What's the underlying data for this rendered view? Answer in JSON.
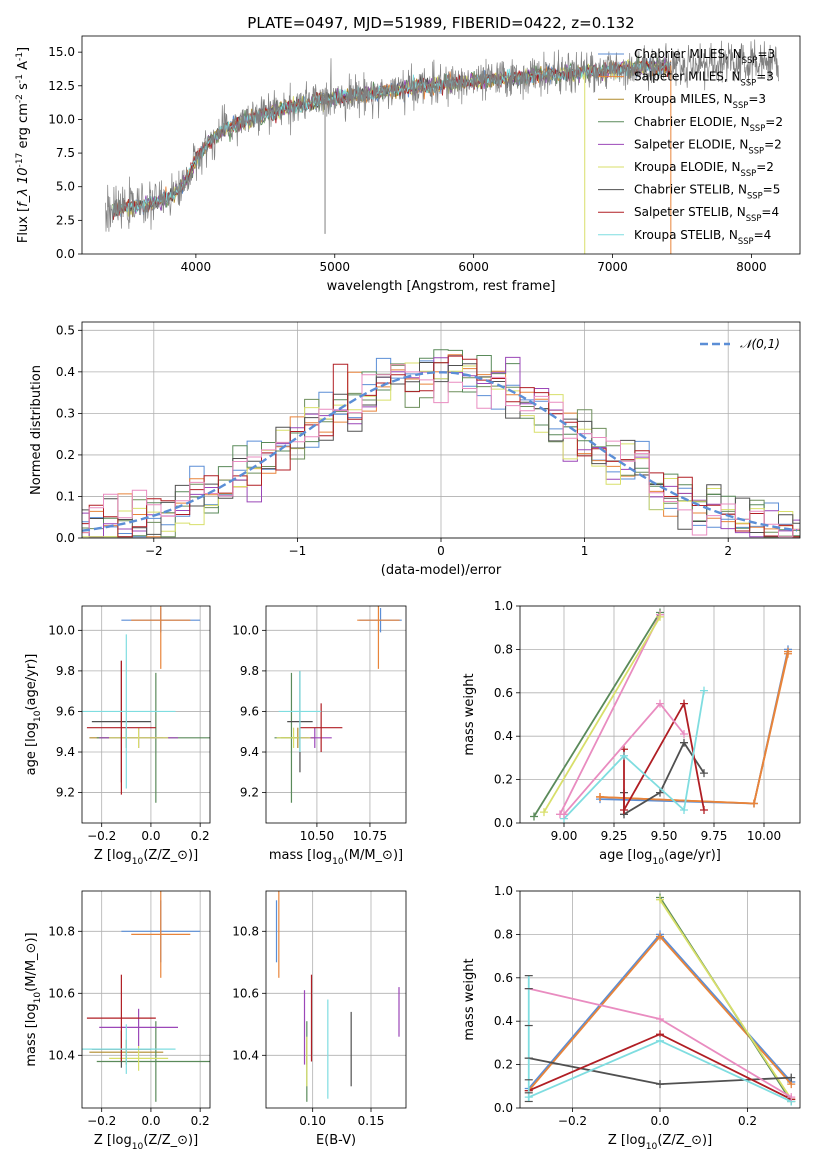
{
  "figure": {
    "title": "PLATE=0497, MJD=51989, FIBERID=0422, z=0.132",
    "models": [
      {
        "label": "Chabrier MILES, N$_{SSP}$=3",
        "imf": "Chabrier",
        "lib": "MILES",
        "nssp": "3",
        "color": "#5b8ed6"
      },
      {
        "label": "Salpeter MILES, N$_{SSP}$=3",
        "imf": "Salpeter",
        "lib": "MILES",
        "nssp": "3",
        "color": "#e8843a"
      },
      {
        "label": "Kroupa MILES, N$_{SSP}$=3",
        "imf": "Kroupa",
        "lib": "MILES",
        "nssp": "3",
        "color": "#b08a2a"
      },
      {
        "label": "Chabrier ELODIE, N$_{SSP}$=2",
        "imf": "Chabrier",
        "lib": "ELODIE",
        "nssp": "2",
        "color": "#5a8a5a"
      },
      {
        "label": "Salpeter ELODIE, N$_{SSP}$=2",
        "imf": "Salpeter",
        "lib": "ELODIE",
        "nssp": "2",
        "color": "#9b47b8"
      },
      {
        "label": "Kroupa ELODIE, N$_{SSP}$=2",
        "imf": "Kroupa",
        "lib": "ELODIE",
        "nssp": "2",
        "color": "#d8df6a"
      },
      {
        "label": "Chabrier STELIB, N$_{SSP}$=5",
        "imf": "Chabrier",
        "lib": "STELIB",
        "nssp": "5",
        "color": "#505050"
      },
      {
        "label": "Salpeter STELIB, N$_{SSP}$=4",
        "imf": "Salpeter",
        "lib": "STELIB",
        "nssp": "4",
        "color": "#b01e24"
      },
      {
        "label": "Kroupa STELIB, N$_{SSP}$=4",
        "imf": "Kroupa",
        "lib": "STELIB",
        "nssp": "4",
        "color": "#7fdde0"
      }
    ]
  },
  "chart_data": [
    {
      "id": "spectrum",
      "type": "line",
      "title": "PLATE=0497, MJD=51989, FIBERID=0422, z=0.132",
      "xlabel": "wavelength [Angstrom, rest frame]",
      "ylabel": "Flux [$f_\\lambda 10^{-17}$ erg cm$^{-2}$ s$^{-1}$ A$^{-1}$]",
      "xlim": [
        3180,
        8350
      ],
      "ylim": [
        0,
        16.2
      ],
      "xticks": [
        4000,
        5000,
        6000,
        7000,
        8000
      ],
      "yticks": [
        0.0,
        2.5,
        5.0,
        7.5,
        10.0,
        12.5,
        15.0
      ],
      "legend_loc": "upper right",
      "grid": false,
      "continuum": {
        "x": [
          3350,
          3500,
          3600,
          3700,
          3800,
          3900,
          3950,
          4000,
          4100,
          4200,
          4300,
          4500,
          4700,
          5000,
          5300,
          5600,
          5900,
          6200,
          6500,
          6800,
          7000,
          7200,
          7400,
          7600,
          7800,
          8000,
          8200
        ],
        "y": [
          3.0,
          3.5,
          3.6,
          3.8,
          4.2,
          5.0,
          5.8,
          7.0,
          8.4,
          9.2,
          9.7,
          10.4,
          11.0,
          11.6,
          12.0,
          12.4,
          12.7,
          13.0,
          13.3,
          13.5,
          13.7,
          13.9,
          14.0,
          14.1,
          14.2,
          14.3,
          14.4
        ]
      },
      "observed_range": [
        3350,
        8200
      ],
      "models_range": [
        3400,
        7420
      ],
      "features": [
        {
          "x": 4930,
          "y": 1.5,
          "note": "deep spike"
        },
        {
          "x": 6800,
          "y": 0.0,
          "note": "gap"
        },
        {
          "x": 7420,
          "y": 0.0,
          "note": "gap"
        }
      ]
    },
    {
      "id": "residuals",
      "type": "line",
      "xlabel": "(data-model)/error",
      "ylabel": "Normed distribution",
      "xlim": [
        -2.5,
        2.5
      ],
      "ylim": [
        0,
        0.52
      ],
      "xticks": [
        -2,
        -1,
        0,
        1,
        2
      ],
      "yticks": [
        0.0,
        0.1,
        0.2,
        0.3,
        0.4,
        0.5
      ],
      "grid": true,
      "legend_loc": "upper right",
      "gaussian": {
        "name": "$\\mathcal{N}(0,1)$",
        "mu": 0,
        "sigma": 1,
        "color": "#5b8ed6"
      },
      "bin_width": 0.1,
      "bin_start": -2.55
    },
    {
      "id": "age_vs_Z",
      "type": "scatter",
      "xlabel": "Z [log$_{10}$(Z/Z$_\\odot$)]",
      "ylabel": "age  [log$_{10}$(age/yr)]",
      "xlim": [
        -0.28,
        0.24
      ],
      "ylim": [
        9.05,
        10.12
      ],
      "xticks": [
        -0.2,
        0.0,
        0.2
      ],
      "yticks": [
        9.2,
        9.4,
        9.6,
        9.8,
        10.0
      ],
      "grid": true,
      "points": [
        {
          "x": 0.04,
          "y": 10.05,
          "xerr": 0.16,
          "yerr": 0.06,
          "model": 0
        },
        {
          "x": 0.04,
          "y": 10.05,
          "xerr": 0.12,
          "yerr": 0.24,
          "model": 1
        },
        {
          "x": -0.1,
          "y": 9.47,
          "xerr": 0.15,
          "yerr": 0.05,
          "model": 2
        },
        {
          "x": 0.02,
          "y": 9.47,
          "xerr": 0.24,
          "yerr": 0.32,
          "model": 3
        },
        {
          "x": -0.05,
          "y": 9.47,
          "xerr": 0.16,
          "yerr": 0.05,
          "model": 4
        },
        {
          "x": -0.05,
          "y": 9.47,
          "xerr": 0.12,
          "yerr": 0.05,
          "model": 5
        },
        {
          "x": -0.12,
          "y": 9.55,
          "xerr": 0.12,
          "yerr": 0.3,
          "model": 6
        },
        {
          "x": -0.12,
          "y": 9.52,
          "xerr": 0.14,
          "yerr": 0.33,
          "model": 7
        },
        {
          "x": -0.1,
          "y": 9.6,
          "xerr": 0.2,
          "yerr": 0.38,
          "model": 8
        }
      ]
    },
    {
      "id": "age_vs_mass",
      "type": "scatter",
      "xlabel": "mass [log$_{10}$(M/M$_\\odot$)]",
      "ylabel": "",
      "xlim": [
        10.26,
        10.92
      ],
      "ylim": [
        9.05,
        10.12
      ],
      "xticks": [
        10.25,
        10.5,
        10.75
      ],
      "yticks": [
        9.2,
        9.4,
        9.6,
        9.8,
        10.0
      ],
      "grid": true,
      "points": [
        {
          "x": 10.8,
          "y": 10.05,
          "xerr": 0.1,
          "yerr": 0.06,
          "model": 0
        },
        {
          "x": 10.79,
          "y": 10.05,
          "xerr": 0.1,
          "yerr": 0.24,
          "model": 1
        },
        {
          "x": 10.41,
          "y": 9.47,
          "xerr": 0.08,
          "yerr": 0.05,
          "model": 2
        },
        {
          "x": 10.38,
          "y": 9.47,
          "xerr": 0.08,
          "yerr": 0.32,
          "model": 3
        },
        {
          "x": 10.49,
          "y": 9.47,
          "xerr": 0.08,
          "yerr": 0.05,
          "model": 4
        },
        {
          "x": 10.39,
          "y": 9.47,
          "xerr": 0.08,
          "yerr": 0.05,
          "model": 5
        },
        {
          "x": 10.42,
          "y": 9.55,
          "xerr": 0.06,
          "yerr": 0.25,
          "model": 6
        },
        {
          "x": 10.52,
          "y": 9.52,
          "xerr": 0.1,
          "yerr": 0.12,
          "model": 7
        },
        {
          "x": 10.42,
          "y": 9.6,
          "xerr": 0.1,
          "yerr": 0.2,
          "model": 8
        }
      ]
    },
    {
      "id": "massweight_vs_age",
      "type": "line",
      "xlabel": "age  [log$_{10}$(age/yr)]",
      "ylabel": "mass weight",
      "xlim": [
        8.78,
        10.18
      ],
      "ylim": [
        0,
        1.0
      ],
      "xticks": [
        9.0,
        9.25,
        9.5,
        9.75,
        10.0
      ],
      "yticks": [
        0.0,
        0.2,
        0.4,
        0.6,
        0.8,
        1.0
      ],
      "grid": true,
      "series": [
        {
          "model": 0,
          "x": [
            9.18,
            9.95,
            10.12
          ],
          "y": [
            0.11,
            0.09,
            0.8
          ]
        },
        {
          "model": 1,
          "x": [
            9.18,
            9.95,
            10.12
          ],
          "y": [
            0.12,
            0.09,
            0.78
          ]
        },
        {
          "model": 2,
          "x": [
            9.18,
            9.95,
            10.12
          ],
          "y": [
            0.12,
            0.09,
            0.79
          ]
        },
        {
          "model": 3,
          "x": [
            8.85,
            9.48
          ],
          "y": [
            0.03,
            0.97
          ]
        },
        {
          "model": 4,
          "x": [
            8.98,
            9.48
          ],
          "y": [
            0.04,
            0.96
          ]
        },
        {
          "model": 5,
          "x": [
            8.9,
            9.48
          ],
          "y": [
            0.05,
            0.95
          ]
        },
        {
          "model": 6,
          "x": [
            9.3,
            9.3,
            9.48,
            9.6,
            9.7
          ],
          "y": [
            0.14,
            0.04,
            0.14,
            0.37,
            0.23
          ]
        },
        {
          "model": 7,
          "x": [
            9.3,
            9.3,
            9.6,
            9.7
          ],
          "y": [
            0.34,
            0.06,
            0.55,
            0.06
          ]
        },
        {
          "model": 8,
          "x": [
            9.0,
            9.3,
            9.6,
            9.7
          ],
          "y": [
            0.02,
            0.31,
            0.06,
            0.61
          ]
        },
        {
          "model": 4,
          "x": [
            9.0,
            9.48,
            9.6
          ],
          "y": [
            0.04,
            0.55,
            0.41
          ]
        }
      ]
    },
    {
      "id": "mass_vs_Z",
      "type": "scatter",
      "xlabel": "Z [log$_{10}$(Z/Z$_\\odot$)]",
      "ylabel": "mass [log$_{10}$(M/M$_\\odot$)]",
      "xlim": [
        -0.28,
        0.24
      ],
      "ylim": [
        10.23,
        10.93
      ],
      "xticks": [
        -0.2,
        0.0,
        0.2
      ],
      "yticks": [
        10.4,
        10.6,
        10.8
      ],
      "grid": true,
      "points": [
        {
          "x": 0.04,
          "y": 10.8,
          "xerr": 0.16,
          "yerr": 0.1,
          "model": 0
        },
        {
          "x": 0.04,
          "y": 10.79,
          "xerr": 0.12,
          "yerr": 0.14,
          "model": 1
        },
        {
          "x": -0.1,
          "y": 10.41,
          "xerr": 0.15,
          "yerr": 0.04,
          "model": 2
        },
        {
          "x": 0.02,
          "y": 10.38,
          "xerr": 0.24,
          "yerr": 0.13,
          "model": 3
        },
        {
          "x": -0.05,
          "y": 10.49,
          "xerr": 0.16,
          "yerr": 0.06,
          "model": 4
        },
        {
          "x": -0.05,
          "y": 10.39,
          "xerr": 0.12,
          "yerr": 0.04,
          "model": 5
        },
        {
          "x": -0.12,
          "y": 10.42,
          "xerr": 0.12,
          "yerr": 0.06,
          "model": 6
        },
        {
          "x": -0.12,
          "y": 10.52,
          "xerr": 0.14,
          "yerr": 0.14,
          "model": 7
        },
        {
          "x": -0.1,
          "y": 10.42,
          "xerr": 0.2,
          "yerr": 0.08,
          "model": 8
        }
      ]
    },
    {
      "id": "mass_vs_ebv",
      "type": "scatter",
      "xlabel": "E(B-V)",
      "ylabel": "",
      "xlim": [
        0.06,
        0.18
      ],
      "ylim": [
        10.23,
        10.93
      ],
      "xticks": [
        0.1,
        0.15
      ],
      "yticks": [
        10.4,
        10.6,
        10.8
      ],
      "grid": true,
      "points": [
        {
          "x": 0.069,
          "y": 10.8,
          "yerr": 0.1,
          "model": 0
        },
        {
          "x": 0.071,
          "y": 10.79,
          "yerr": 0.14,
          "model": 1
        },
        {
          "x": 0.095,
          "y": 10.41,
          "yerr": 0.04,
          "model": 2
        },
        {
          "x": 0.095,
          "y": 10.38,
          "yerr": 0.13,
          "model": 3
        },
        {
          "x": 0.093,
          "y": 10.49,
          "yerr": 0.12,
          "model": 4
        },
        {
          "x": 0.095,
          "y": 10.38,
          "yerr": 0.08,
          "model": 5
        },
        {
          "x": 0.133,
          "y": 10.42,
          "yerr": 0.12,
          "model": 6
        },
        {
          "x": 0.099,
          "y": 10.52,
          "yerr": 0.14,
          "model": 7
        },
        {
          "x": 0.113,
          "y": 10.42,
          "yerr": 0.16,
          "model": 8
        },
        {
          "x": 0.174,
          "y": 10.54,
          "yerr": 0.08,
          "model": 4
        }
      ]
    },
    {
      "id": "massweight_vs_Z",
      "type": "line",
      "xlabel": "Z [log$_{10}$(Z/Z$_\\odot$)]",
      "ylabel": "mass weight",
      "xlim": [
        -0.32,
        0.32
      ],
      "ylim": [
        0,
        1.0
      ],
      "xticks": [
        -0.2,
        0.0,
        0.2
      ],
      "yticks": [
        0.0,
        0.2,
        0.4,
        0.6,
        0.8,
        1.0
      ],
      "grid": true,
      "series": [
        {
          "model": 0,
          "x": [
            -0.3,
            0.0,
            0.3
          ],
          "y": [
            0.09,
            0.8,
            0.12
          ]
        },
        {
          "model": 1,
          "x": [
            -0.3,
            0.0,
            0.3
          ],
          "y": [
            0.08,
            0.79,
            0.11
          ]
        },
        {
          "model": 3,
          "x": [
            0.0,
            0.3
          ],
          "y": [
            0.97,
            0.03
          ]
        },
        {
          "model": 5,
          "x": [
            0.0,
            0.3
          ],
          "y": [
            0.96,
            0.04
          ]
        },
        {
          "model": 6,
          "x": [
            -0.3,
            0.0,
            0.3
          ],
          "y": [
            0.23,
            0.11,
            0.14
          ]
        },
        {
          "model": 7,
          "x": [
            -0.3,
            0.0,
            0.3
          ],
          "y": [
            0.08,
            0.34,
            0.04
          ]
        },
        {
          "model": 8,
          "x": [
            -0.3,
            0.0,
            0.3
          ],
          "y": [
            0.05,
            0.31,
            0.03
          ]
        },
        {
          "model": 4,
          "x": [
            -0.3,
            0.0,
            0.3
          ],
          "y": [
            0.55,
            0.41,
            0.05
          ]
        }
      ],
      "vertical_stack": {
        "x": -0.3,
        "y": [
          0.03,
          0.07,
          0.13,
          0.23,
          0.38,
          0.55,
          0.61
        ]
      }
    }
  ]
}
